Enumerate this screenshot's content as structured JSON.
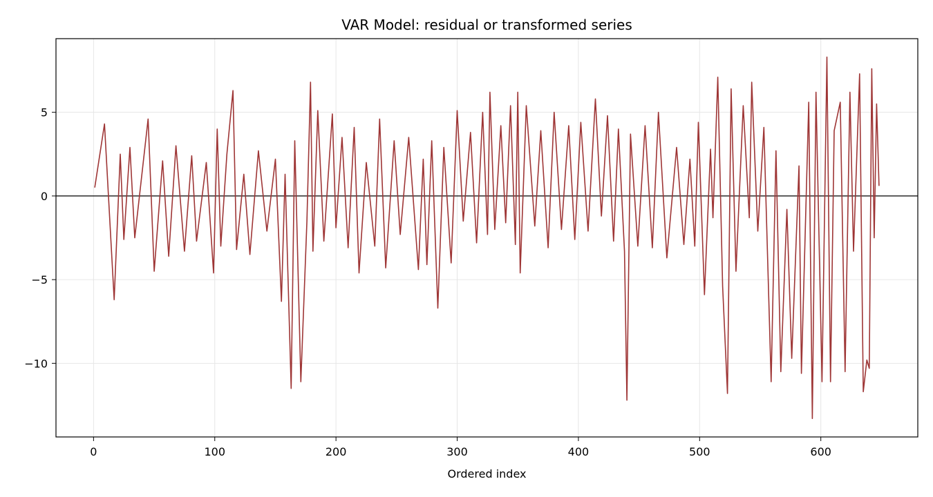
{
  "chart_data": {
    "type": "line",
    "title": "VAR Model: residual or transformed series",
    "xlabel": "Ordered index",
    "ylabel": "",
    "xlim": [
      -31,
      680
    ],
    "ylim": [
      -14.4,
      9.4
    ],
    "x_ticks": [
      0,
      100,
      200,
      300,
      400,
      500,
      600
    ],
    "y_ticks": [
      -10,
      -5,
      0,
      5
    ],
    "y_tick_labels": [
      "−10",
      "−5",
      "0",
      "5"
    ],
    "grid": true,
    "reference_line_y": 0,
    "series": [
      {
        "color": "#9e3535",
        "x": [
          1,
          9,
          17,
          22,
          25,
          30,
          34,
          45,
          50,
          57,
          62,
          68,
          75,
          81,
          85,
          93,
          99,
          102,
          105,
          110,
          115,
          118,
          124,
          129,
          136,
          143,
          150,
          155,
          158,
          163,
          166,
          171,
          176,
          179,
          181,
          185,
          190,
          197,
          200,
          205,
          210,
          215,
          219,
          225,
          232,
          236,
          241,
          248,
          253,
          260,
          268,
          272,
          275,
          279,
          284,
          289,
          295,
          300,
          305,
          311,
          316,
          321,
          325,
          327,
          331,
          336,
          340,
          344,
          348,
          350,
          352,
          357,
          364,
          369,
          375,
          380,
          386,
          392,
          397,
          402,
          408,
          414,
          419,
          424,
          429,
          433,
          438,
          440,
          443,
          449,
          455,
          461,
          466,
          473,
          481,
          487,
          492,
          496,
          499,
          504,
          509,
          511,
          515,
          519,
          523,
          526,
          530,
          536,
          541,
          543,
          548,
          553,
          559,
          563,
          567,
          572,
          576,
          582,
          584,
          590,
          593,
          596,
          601,
          605,
          608,
          611,
          616,
          620,
          624,
          627,
          632,
          635,
          638,
          640,
          642,
          644,
          646,
          648
        ],
        "y": [
          0.5,
          4.3,
          -6.2,
          2.5,
          -2.6,
          2.9,
          -2.5,
          4.6,
          -4.5,
          2.1,
          -3.6,
          3.0,
          -3.3,
          2.4,
          -2.7,
          2.0,
          -4.6,
          4.0,
          -3.0,
          2.5,
          6.3,
          -3.2,
          1.3,
          -3.5,
          2.7,
          -2.1,
          2.2,
          -6.3,
          1.3,
          -11.5,
          3.3,
          -11.1,
          -1.5,
          6.8,
          -3.3,
          5.1,
          -2.7,
          4.9,
          -1.9,
          3.5,
          -3.1,
          4.1,
          -4.6,
          2.0,
          -3.0,
          4.6,
          -4.3,
          3.3,
          -2.3,
          3.5,
          -4.4,
          2.2,
          -4.1,
          3.3,
          -6.7,
          2.9,
          -4.0,
          5.1,
          -1.5,
          3.8,
          -2.8,
          5.0,
          -2.3,
          6.2,
          -2.0,
          4.2,
          -1.6,
          5.4,
          -2.9,
          6.2,
          -4.6,
          5.4,
          -1.8,
          3.9,
          -3.1,
          5.0,
          -2.0,
          4.2,
          -2.6,
          4.4,
          -2.1,
          5.8,
          -1.2,
          4.8,
          -2.7,
          4.0,
          -3.3,
          -12.2,
          3.7,
          -3.0,
          4.2,
          -3.1,
          5.0,
          -3.7,
          2.9,
          -2.9,
          2.2,
          -3.0,
          4.4,
          -5.9,
          2.8,
          -1.3,
          7.1,
          -5.4,
          -11.8,
          6.4,
          -4.5,
          5.4,
          -1.3,
          6.8,
          -2.1,
          4.1,
          -11.1,
          2.7,
          -10.5,
          -0.8,
          -9.7,
          1.8,
          -10.6,
          5.6,
          -13.3,
          6.2,
          -11.1,
          8.3,
          -11.1,
          3.9,
          5.6,
          -10.5,
          6.2,
          -3.3,
          7.3,
          -11.7,
          -9.8,
          -10.3,
          7.6,
          -2.5,
          5.5,
          0.6
        ]
      }
    ]
  }
}
